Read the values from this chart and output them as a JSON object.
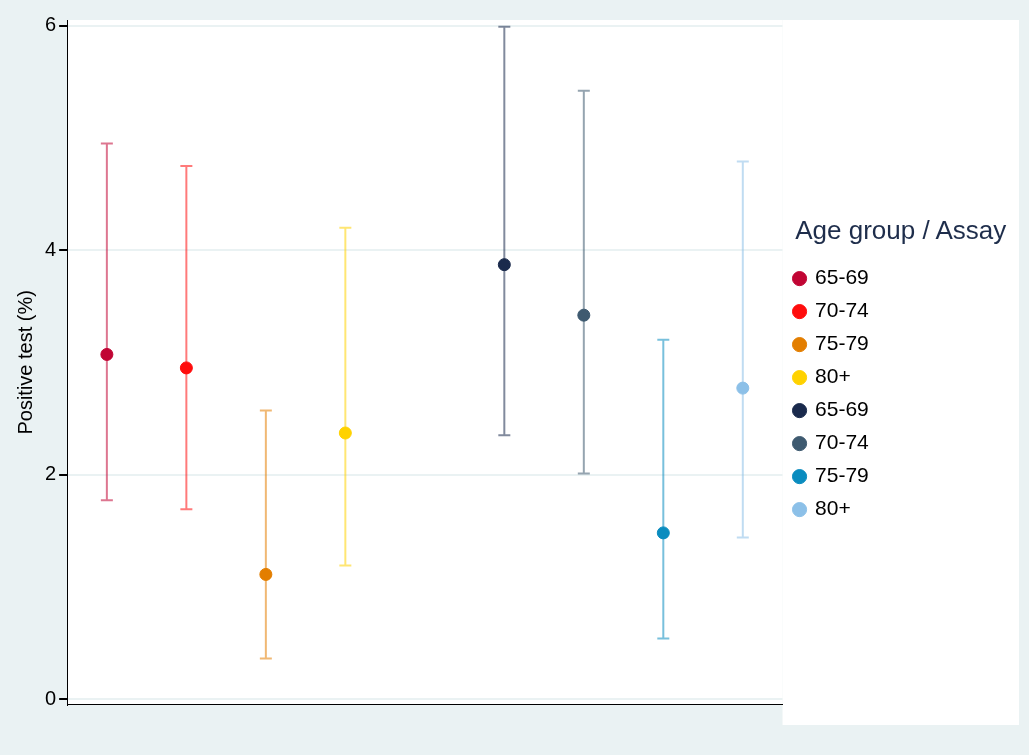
{
  "chart_data": {
    "type": "scatter",
    "ylabel": "Positive test (%)",
    "legend_title": "Age group / Assay",
    "legend": "right",
    "grid": "y",
    "marker": "circle",
    "categories": [
      null,
      null,
      null,
      null,
      null,
      null,
      null,
      null,
      null
    ],
    "ylim": [
      -0.05,
      6.05
    ],
    "yticks": [
      0,
      2,
      4,
      6
    ],
    "series": [
      {
        "name": "65-69",
        "color": "#c10534",
        "values": [
          3.07,
          null,
          null,
          null,
          null,
          null,
          null,
          null,
          null
        ],
        "errors": [
          [
            1.77,
            4.95
          ],
          null,
          null,
          null,
          null,
          null,
          null,
          null,
          null
        ]
      },
      {
        "name": "70-74",
        "color": "#ff0d0d",
        "values": [
          null,
          2.95,
          null,
          null,
          null,
          null,
          null,
          null,
          null
        ],
        "errors": [
          null,
          [
            1.69,
            4.75
          ],
          null,
          null,
          null,
          null,
          null,
          null,
          null
        ]
      },
      {
        "name": "75-79",
        "color": "#e37e00",
        "values": [
          null,
          null,
          1.11,
          null,
          null,
          null,
          null,
          null,
          null
        ],
        "errors": [
          null,
          null,
          [
            0.36,
            2.57
          ],
          null,
          null,
          null,
          null,
          null,
          null
        ]
      },
      {
        "name": "80+",
        "color": "#ffd200",
        "values": [
          null,
          null,
          null,
          2.37,
          null,
          null,
          null,
          null,
          null
        ],
        "errors": [
          null,
          null,
          null,
          [
            1.19,
            4.2
          ],
          null,
          null,
          null,
          null,
          null
        ]
      },
      {
        "name": "65-69",
        "color": "#1a2a4c",
        "values": [
          null,
          null,
          null,
          null,
          null,
          3.87,
          null,
          null,
          null
        ],
        "errors": [
          null,
          null,
          null,
          null,
          null,
          [
            2.35,
            5.99
          ],
          null,
          null,
          null
        ]
      },
      {
        "name": "70-74",
        "color": "#3e5a70",
        "values": [
          null,
          null,
          null,
          null,
          null,
          null,
          3.42,
          null,
          null
        ],
        "errors": [
          null,
          null,
          null,
          null,
          null,
          null,
          [
            2.01,
            5.42
          ],
          null,
          null
        ]
      },
      {
        "name": "75-79",
        "color": "#0a8cbf",
        "values": [
          null,
          null,
          null,
          null,
          null,
          null,
          null,
          1.48,
          null
        ],
        "errors": [
          null,
          null,
          null,
          null,
          null,
          null,
          null,
          [
            0.54,
            3.2
          ],
          null
        ]
      },
      {
        "name": "80+",
        "color": "#8cc0e8",
        "values": [
          null,
          null,
          null,
          null,
          null,
          null,
          null,
          null,
          2.77
        ],
        "errors": [
          null,
          null,
          null,
          null,
          null,
          null,
          null,
          null,
          [
            1.44,
            4.79
          ]
        ]
      }
    ]
  }
}
